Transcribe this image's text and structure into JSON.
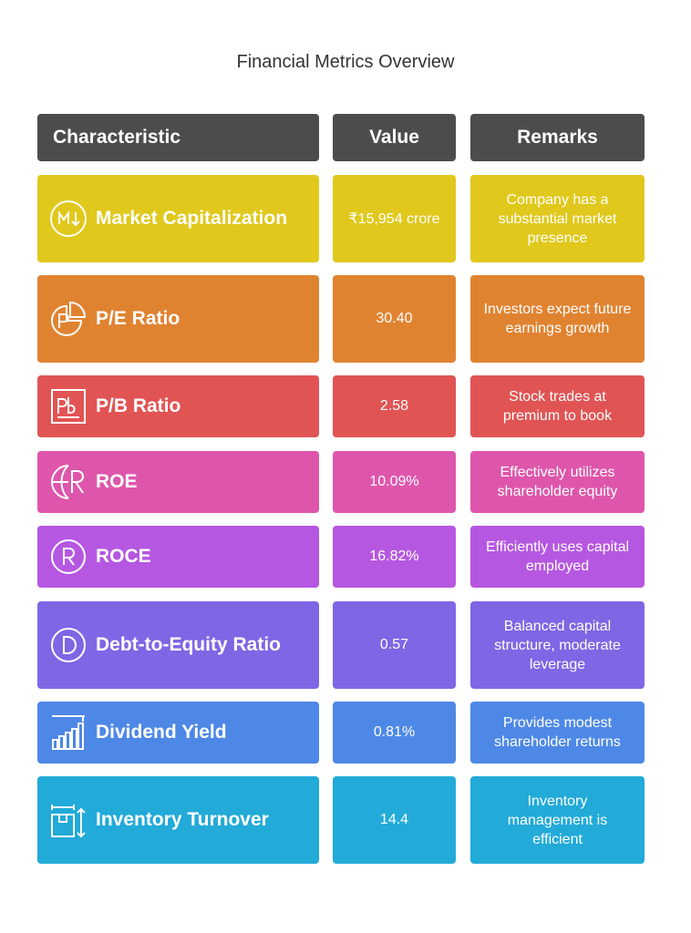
{
  "title": "Financial Metrics Overview",
  "headers": {
    "characteristic": "Characteristic",
    "value": "Value",
    "remarks": "Remarks"
  },
  "rows": [
    {
      "characteristic": "Market Capitalization",
      "value": "₹15,954 crore",
      "remarks": "Company has a substantial market presence",
      "color": "#e0c81c",
      "icon": "market-cap-icon"
    },
    {
      "characteristic": "P/E Ratio",
      "value": "30.40",
      "remarks": "Investors expect future earnings growth",
      "color": "#e08331",
      "icon": "pie-chart-icon"
    },
    {
      "characteristic": "P/B Ratio",
      "value": "2.58",
      "remarks": "Stock trades at premium to book",
      "color": "#e15454",
      "icon": "pb-icon"
    },
    {
      "characteristic": "ROE",
      "value": "10.09%",
      "remarks": "Effectively utilizes shareholder equity",
      "color": "#de56ab",
      "icon": "globe-r-icon"
    },
    {
      "characteristic": "ROCE",
      "value": "16.82%",
      "remarks": "Efficiently uses capital employed",
      "color": "#b657e1",
      "icon": "r-circle-icon"
    },
    {
      "characteristic": "Debt-to-Equity Ratio",
      "value": "0.57",
      "remarks": "Balanced capital structure, moderate leverage",
      "color": "#7e66e5",
      "icon": "d-circle-icon"
    },
    {
      "characteristic": "Dividend Yield",
      "value": "0.81%",
      "remarks": "Provides modest shareholder returns",
      "color": "#4e88e6",
      "icon": "bar-chart-icon"
    },
    {
      "characteristic": "Inventory Turnover",
      "value": "14.4",
      "remarks": "Inventory management is efficient",
      "color": "#22aad8",
      "icon": "box-icon"
    }
  ]
}
